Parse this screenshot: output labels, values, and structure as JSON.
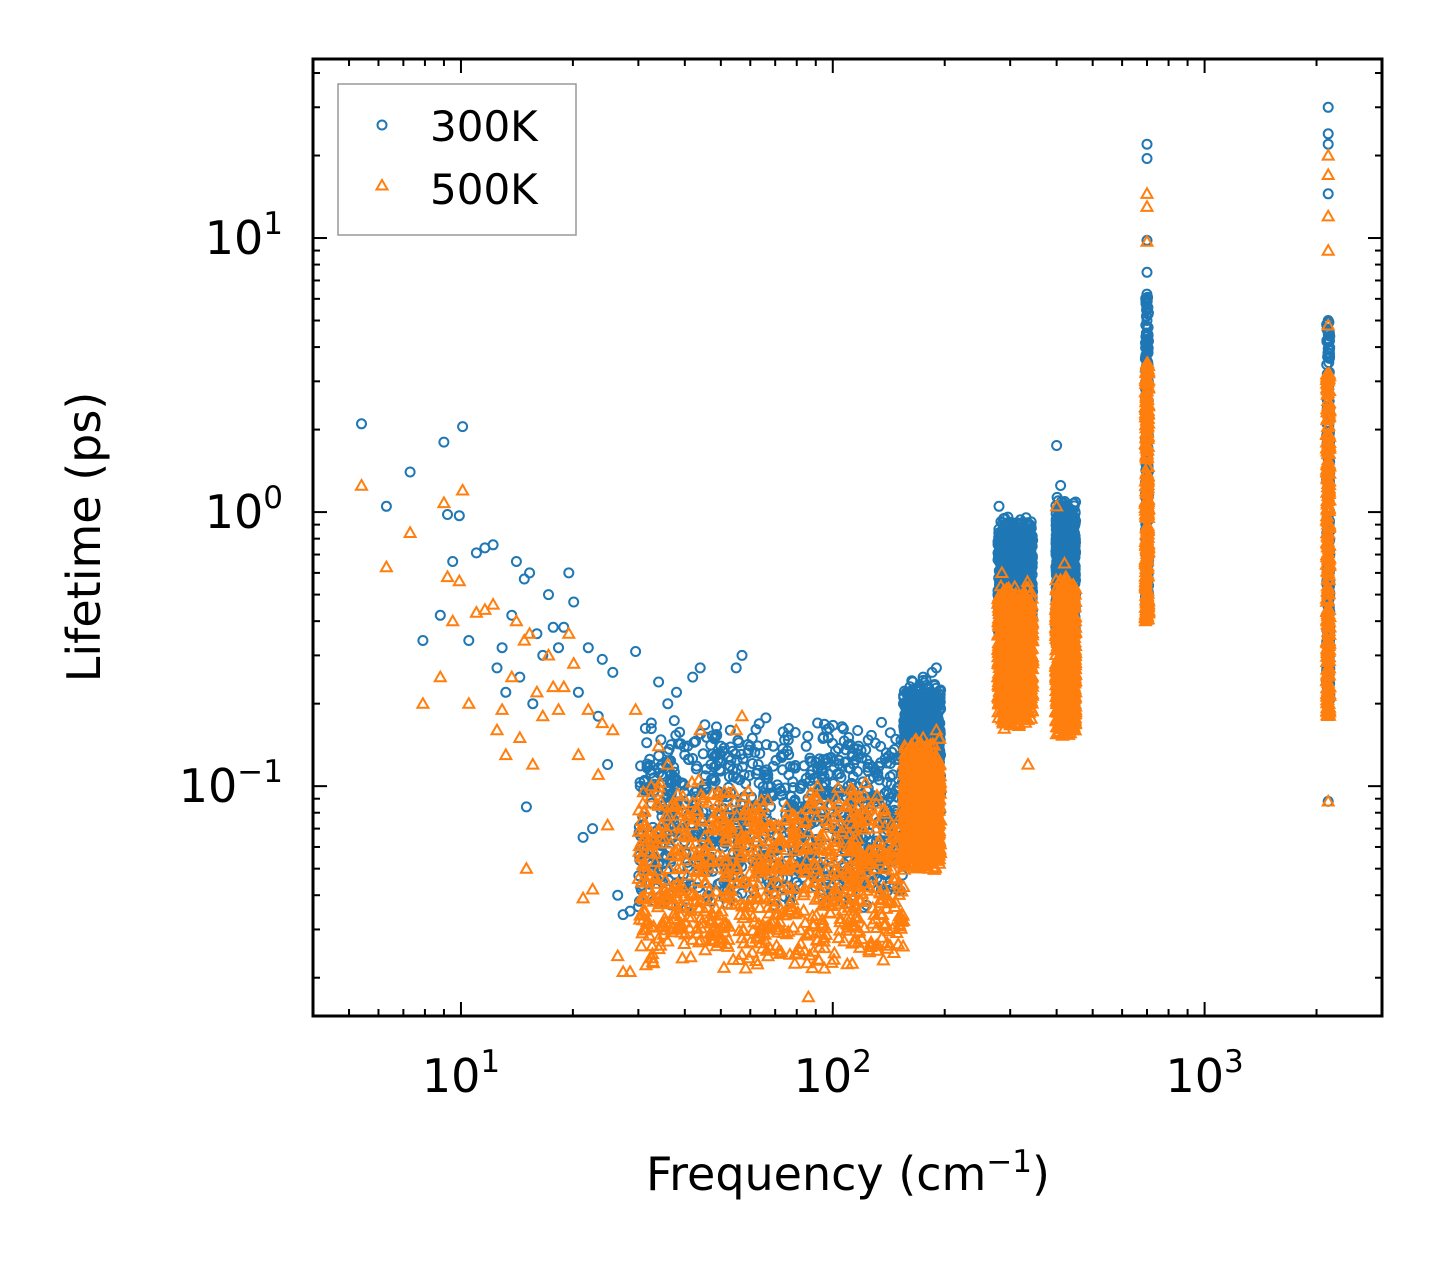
{
  "chart_data": {
    "type": "scatter",
    "title": "",
    "xlabel": "Frequency (cm",
    "xlabel_sup": "−1",
    "xlabel_suffix": ")",
    "ylabel": "Lifetime (ps)",
    "xscale": "log",
    "yscale": "log",
    "xlim": [
      4.0,
      3000.0
    ],
    "ylim": [
      0.0145,
      45.0
    ],
    "x_ticks": [
      {
        "value": 10,
        "base": "10",
        "exp": "1"
      },
      {
        "value": 100,
        "base": "10",
        "exp": "2"
      },
      {
        "value": 1000,
        "base": "10",
        "exp": "3"
      }
    ],
    "y_ticks": [
      {
        "value": 0.1,
        "base": "10",
        "exp": "−1"
      },
      {
        "value": 1,
        "base": "10",
        "exp": "0"
      },
      {
        "value": 10,
        "base": "10",
        "exp": "1"
      }
    ],
    "legend_position": "top-left",
    "series": [
      {
        "name": "300K",
        "color": "#1f77b4",
        "marker": "circle",
        "points": [
          [
            5.4,
            2.1
          ],
          [
            6.3,
            1.05
          ],
          [
            7.3,
            1.4
          ],
          [
            7.9,
            0.34
          ],
          [
            8.8,
            0.42
          ],
          [
            9.0,
            1.8
          ],
          [
            9.2,
            0.98
          ],
          [
            9.5,
            0.66
          ],
          [
            9.9,
            0.97
          ],
          [
            10.1,
            2.05
          ],
          [
            10.5,
            0.34
          ],
          [
            11.0,
            0.71
          ],
          [
            11.6,
            0.74
          ],
          [
            12.2,
            0.76
          ],
          [
            12.5,
            0.27
          ],
          [
            12.9,
            0.32
          ],
          [
            13.2,
            0.22
          ],
          [
            13.7,
            0.42
          ],
          [
            14.1,
            0.66
          ],
          [
            14.4,
            0.25
          ],
          [
            14.8,
            0.57
          ],
          [
            15.0,
            0.084
          ],
          [
            15.3,
            0.6
          ],
          [
            15.6,
            0.2
          ],
          [
            16.0,
            0.36
          ],
          [
            16.6,
            0.3
          ],
          [
            17.2,
            0.5
          ],
          [
            17.7,
            0.38
          ],
          [
            18.3,
            0.32
          ],
          [
            18.9,
            0.38
          ],
          [
            19.5,
            0.6
          ],
          [
            20.1,
            0.47
          ],
          [
            20.7,
            0.22
          ],
          [
            21.3,
            0.065
          ],
          [
            22.0,
            0.32
          ],
          [
            22.6,
            0.07
          ],
          [
            23.4,
            0.18
          ],
          [
            24.0,
            0.29
          ],
          [
            24.8,
            0.12
          ],
          [
            25.6,
            0.26
          ],
          [
            26.4,
            0.04
          ],
          [
            27.3,
            0.034
          ],
          [
            28.5,
            0.035
          ],
          [
            29.5,
            0.31
          ],
          [
            31.0,
            0.05
          ],
          [
            32.5,
            0.17
          ],
          [
            34.0,
            0.24
          ],
          [
            36.0,
            0.2
          ],
          [
            38.0,
            0.22
          ],
          [
            40.0,
            0.13
          ],
          [
            42.0,
            0.25
          ],
          [
            44.0,
            0.27
          ],
          [
            47.0,
            0.12
          ],
          [
            50.0,
            0.14
          ],
          [
            53.0,
            0.16
          ],
          [
            55.0,
            0.27
          ],
          [
            57.0,
            0.3
          ],
          [
            60.0,
            0.14
          ],
          [
            63.0,
            0.12
          ],
          [
            67.0,
            0.1
          ],
          [
            72.0,
            0.098
          ],
          [
            77.0,
            0.085
          ],
          [
            82.0,
            0.1
          ],
          [
            87.0,
            0.11
          ],
          [
            91.0,
            0.17
          ],
          [
            95.0,
            0.095
          ],
          [
            100.0,
            0.07
          ],
          [
            105.0,
            0.08
          ],
          [
            110.0,
            0.1
          ],
          [
            115.0,
            0.09
          ],
          [
            122.0,
            0.085
          ],
          [
            130.0,
            0.09
          ],
          [
            138.0,
            0.08
          ],
          [
            145.0,
            0.11
          ],
          [
            155.0,
            0.2
          ],
          [
            165.0,
            0.22
          ],
          [
            175.0,
            0.25
          ],
          [
            185.0,
            0.26
          ],
          [
            190.0,
            0.27
          ],
          [
            280.0,
            1.05
          ],
          [
            285.0,
            0.8
          ],
          [
            290.0,
            0.95
          ],
          [
            296.0,
            0.7
          ],
          [
            303.0,
            0.9
          ],
          [
            318.0,
            0.45
          ],
          [
            325.0,
            0.55
          ],
          [
            335.0,
            0.5
          ],
          [
            340.0,
            0.38
          ],
          [
            400.0,
            1.75
          ],
          [
            410.0,
            1.25
          ],
          [
            420.0,
            1.05
          ],
          [
            430.0,
            0.9
          ],
          [
            440.0,
            0.7
          ],
          [
            700.0,
            22.0
          ],
          [
            700.0,
            19.5
          ],
          [
            700.0,
            9.8
          ],
          [
            700.0,
            7.5
          ],
          [
            700.0,
            5.0
          ],
          [
            700.0,
            3.5
          ],
          [
            700.0,
            2.5
          ],
          [
            2150.0,
            30.0
          ],
          [
            2150.0,
            24.0
          ],
          [
            2150.0,
            22.0
          ],
          [
            2150.0,
            14.5
          ],
          [
            2150.0,
            5.0
          ],
          [
            2150.0,
            3.0
          ],
          [
            2150.0,
            0.088
          ]
        ],
        "bands": [
          {
            "x": [
              30,
              155
            ],
            "y_low": 0.032,
            "y_high": 0.2
          },
          {
            "x": [
              155,
              195
            ],
            "y_low": 0.07,
            "y_high": 0.27
          },
          {
            "x": [
              278,
              345
            ],
            "y_low": 0.3,
            "y_high": 1.05
          },
          {
            "x": [
              398,
              450
            ],
            "y_low": 0.28,
            "y_high": 1.25
          },
          {
            "x": [
              700,
              700
            ],
            "y_low": 0.42,
            "y_high": 6.5
          },
          {
            "x": [
              2150,
              2150
            ],
            "y_low": 0.2,
            "y_high": 5.0
          }
        ]
      },
      {
        "name": "500K",
        "color": "#ff7f0e",
        "marker": "triangle",
        "points": [
          [
            5.4,
            1.25
          ],
          [
            6.3,
            0.63
          ],
          [
            7.3,
            0.84
          ],
          [
            7.9,
            0.2
          ],
          [
            8.8,
            0.25
          ],
          [
            9.0,
            1.08
          ],
          [
            9.2,
            0.58
          ],
          [
            9.5,
            0.4
          ],
          [
            9.9,
            0.56
          ],
          [
            10.1,
            1.2
          ],
          [
            10.5,
            0.2
          ],
          [
            11.0,
            0.43
          ],
          [
            11.6,
            0.44
          ],
          [
            12.2,
            0.46
          ],
          [
            12.5,
            0.16
          ],
          [
            12.9,
            0.19
          ],
          [
            13.2,
            0.13
          ],
          [
            13.7,
            0.25
          ],
          [
            14.1,
            0.4
          ],
          [
            14.4,
            0.15
          ],
          [
            14.8,
            0.34
          ],
          [
            15.0,
            0.05
          ],
          [
            15.3,
            0.36
          ],
          [
            15.6,
            0.12
          ],
          [
            16.0,
            0.22
          ],
          [
            16.6,
            0.18
          ],
          [
            17.2,
            0.3
          ],
          [
            17.7,
            0.23
          ],
          [
            18.3,
            0.19
          ],
          [
            18.9,
            0.23
          ],
          [
            19.5,
            0.36
          ],
          [
            20.1,
            0.28
          ],
          [
            20.7,
            0.13
          ],
          [
            21.3,
            0.039
          ],
          [
            22.0,
            0.19
          ],
          [
            22.6,
            0.042
          ],
          [
            23.4,
            0.11
          ],
          [
            24.0,
            0.17
          ],
          [
            24.8,
            0.072
          ],
          [
            25.6,
            0.16
          ],
          [
            26.4,
            0.024
          ],
          [
            27.3,
            0.021
          ],
          [
            28.5,
            0.021
          ],
          [
            29.5,
            0.19
          ],
          [
            31.0,
            0.03
          ],
          [
            32.5,
            0.1
          ],
          [
            34.0,
            0.14
          ],
          [
            36.0,
            0.12
          ],
          [
            40.0,
            0.08
          ],
          [
            44.0,
            0.16
          ],
          [
            50.0,
            0.085
          ],
          [
            55.0,
            0.16
          ],
          [
            57.0,
            0.18
          ],
          [
            63.0,
            0.07
          ],
          [
            72.0,
            0.06
          ],
          [
            82.0,
            0.06
          ],
          [
            86.0,
            0.017
          ],
          [
            91.0,
            0.1
          ],
          [
            100.0,
            0.04
          ],
          [
            110.0,
            0.06
          ],
          [
            115.0,
            0.055
          ],
          [
            130.0,
            0.05
          ],
          [
            145.0,
            0.07
          ],
          [
            155.0,
            0.12
          ],
          [
            175.0,
            0.15
          ],
          [
            190.0,
            0.16
          ],
          [
            285.0,
            0.6
          ],
          [
            296.0,
            0.42
          ],
          [
            318.0,
            0.27
          ],
          [
            335.0,
            0.3
          ],
          [
            335.0,
            0.12
          ],
          [
            400.0,
            1.05
          ],
          [
            420.0,
            0.65
          ],
          [
            440.0,
            0.43
          ],
          [
            700.0,
            14.5
          ],
          [
            700.0,
            13.0
          ],
          [
            700.0,
            9.7
          ],
          [
            700.0,
            3.5
          ],
          [
            2150.0,
            20.0
          ],
          [
            2150.0,
            17.0
          ],
          [
            2150.0,
            12.0
          ],
          [
            2150.0,
            9.0
          ],
          [
            2150.0,
            4.8
          ],
          [
            2150.0,
            3.0
          ],
          [
            2150.0,
            0.088
          ]
        ],
        "bands": [
          {
            "x": [
              30,
              155
            ],
            "y_low": 0.019,
            "y_high": 0.12
          },
          {
            "x": [
              155,
              195
            ],
            "y_low": 0.045,
            "y_high": 0.16
          },
          {
            "x": [
              278,
              345
            ],
            "y_low": 0.15,
            "y_high": 0.6
          },
          {
            "x": [
              398,
              450
            ],
            "y_low": 0.14,
            "y_high": 0.65
          },
          {
            "x": [
              700,
              700
            ],
            "y_low": 0.4,
            "y_high": 3.5
          },
          {
            "x": [
              2150,
              2150
            ],
            "y_low": 0.18,
            "y_high": 3.2
          }
        ]
      }
    ]
  }
}
